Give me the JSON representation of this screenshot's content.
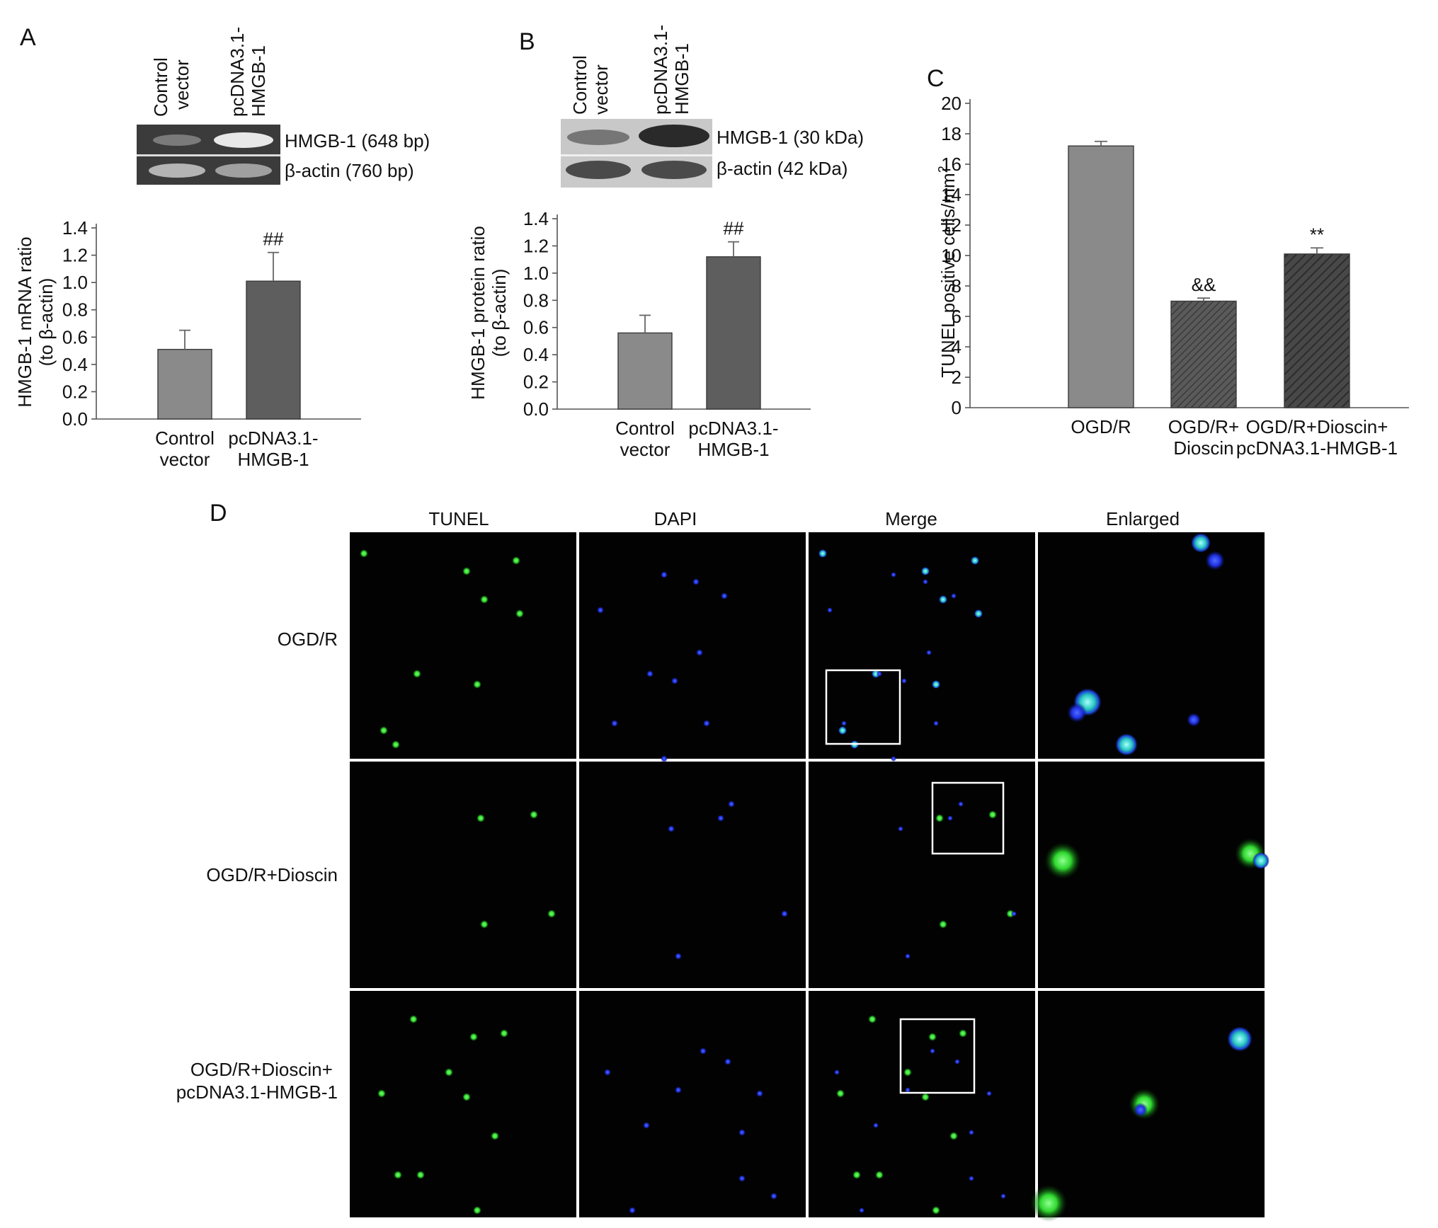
{
  "panels": {
    "A": {
      "letter": "A",
      "lane_labels": [
        [
          "Control",
          "vector"
        ],
        [
          "pcDNA3.1-",
          "HMGB-1"
        ]
      ],
      "band_labels": [
        "HMGB-1 (648 bp)",
        "β-actin (760 bp)"
      ],
      "cat_labels": [
        [
          "Control",
          "vector"
        ],
        [
          "pcDNA3.1-",
          "HMGB-1"
        ]
      ],
      "ylabel_lines": [
        "HMGB-1 mRNA ratio",
        "(to β-actin)"
      ],
      "sig": [
        "",
        "##"
      ]
    },
    "B": {
      "letter": "B",
      "lane_labels": [
        [
          "Control",
          "vector"
        ],
        [
          "pcDNA3.1-",
          "HMGB-1"
        ]
      ],
      "band_labels": [
        "HMGB-1 (30 kDa)",
        "β-actin (42 kDa)"
      ],
      "cat_labels": [
        [
          "Control",
          "vector"
        ],
        [
          "pcDNA3.1-",
          "HMGB-1"
        ]
      ],
      "ylabel_lines": [
        "HMGB-1 protein ratio",
        "(to β-actin)"
      ],
      "sig": [
        "",
        "##"
      ]
    },
    "C": {
      "letter": "C",
      "cat_labels": [
        [
          "OGD/R"
        ],
        [
          "OGD/R+",
          "Dioscin"
        ],
        [
          "OGD/R+Dioscin+",
          "pcDNA3.1-HMGB-1"
        ]
      ],
      "ylabel": "TUNEL positive cells/mm",
      "ylabel_sup": "2",
      "sig": [
        "",
        "&&",
        "**"
      ]
    },
    "D": {
      "letter": "D",
      "col_headers": [
        "TUNEL",
        "DAPI",
        "Merge",
        "Enlarged"
      ],
      "row_labels": [
        [
          "OGD/R"
        ],
        [
          "OGD/R+Dioscin"
        ],
        [
          "OGD/R+Dioscin+",
          "pcDNA3.1-HMGB-1"
        ]
      ]
    }
  },
  "chart_data": [
    {
      "panel": "A",
      "type": "bar",
      "categories": [
        "Control vector",
        "pcDNA3.1-HMGB-1"
      ],
      "values": [
        0.51,
        1.01
      ],
      "errors": [
        0.14,
        0.21
      ],
      "ylabel": "HMGB-1 mRNA ratio (to β-actin)",
      "ylim": [
        0,
        1.4
      ],
      "yticks": [
        "0.0",
        "0.2",
        "0.4",
        "0.6",
        "0.8",
        "1.0",
        "1.2",
        "1.4"
      ],
      "colors": [
        "#8a8a8a",
        "#5e5e5e"
      ]
    },
    {
      "panel": "B",
      "type": "bar",
      "categories": [
        "Control vector",
        "pcDNA3.1-HMGB-1"
      ],
      "values": [
        0.56,
        1.12
      ],
      "errors": [
        0.13,
        0.11
      ],
      "ylabel": "HMGB-1 protein ratio (to β-actin)",
      "ylim": [
        0,
        1.4
      ],
      "yticks": [
        "0.0",
        "0.2",
        "0.4",
        "0.6",
        "0.8",
        "1.0",
        "1.2",
        "1.4"
      ],
      "colors": [
        "#8a8a8a",
        "#5e5e5e"
      ]
    },
    {
      "panel": "C",
      "type": "bar",
      "categories": [
        "OGD/R",
        "OGD/R+ Dioscin",
        "OGD/R+Dioscin+ pcDNA3.1-HMGB-1"
      ],
      "values": [
        17.2,
        7.0,
        10.1
      ],
      "errors": [
        0.3,
        0.2,
        0.4
      ],
      "ylabel": "TUNEL positive cells/mm2",
      "ylim": [
        0,
        20
      ],
      "yticks": [
        "0",
        "2",
        "4",
        "6",
        "8",
        "10",
        "12",
        "14",
        "16",
        "18",
        "20"
      ],
      "colors": [
        "#8a8a8a",
        "#5a5a5a",
        "#444444"
      ],
      "hatched": [
        false,
        true,
        true
      ]
    }
  ]
}
